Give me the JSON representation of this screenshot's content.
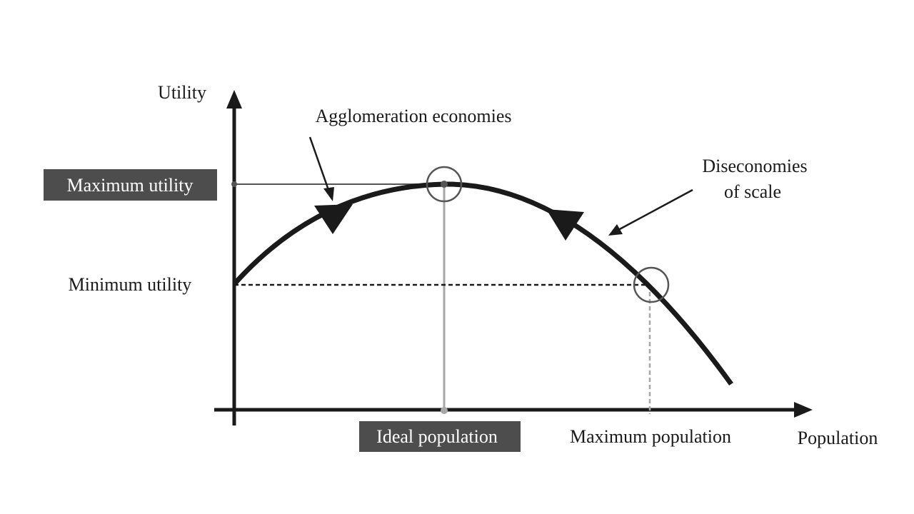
{
  "labels": {
    "y_axis": "Utility",
    "x_axis": "Population",
    "agglomeration": "Agglomeration economies",
    "diseconomies_line1": "Diseconomies",
    "diseconomies_line2": "of scale",
    "maximum_utility": "Maximum utility",
    "minimum_utility": "Minimum utility",
    "ideal_population": "Ideal population",
    "maximum_population": "Maximum population"
  },
  "colors": {
    "curve": "#1a1a1a",
    "axis": "#1a1a1a",
    "label_box": "#4d4d4d",
    "guide_gray": "#a6a6a6",
    "guide_dark": "#555555"
  }
}
